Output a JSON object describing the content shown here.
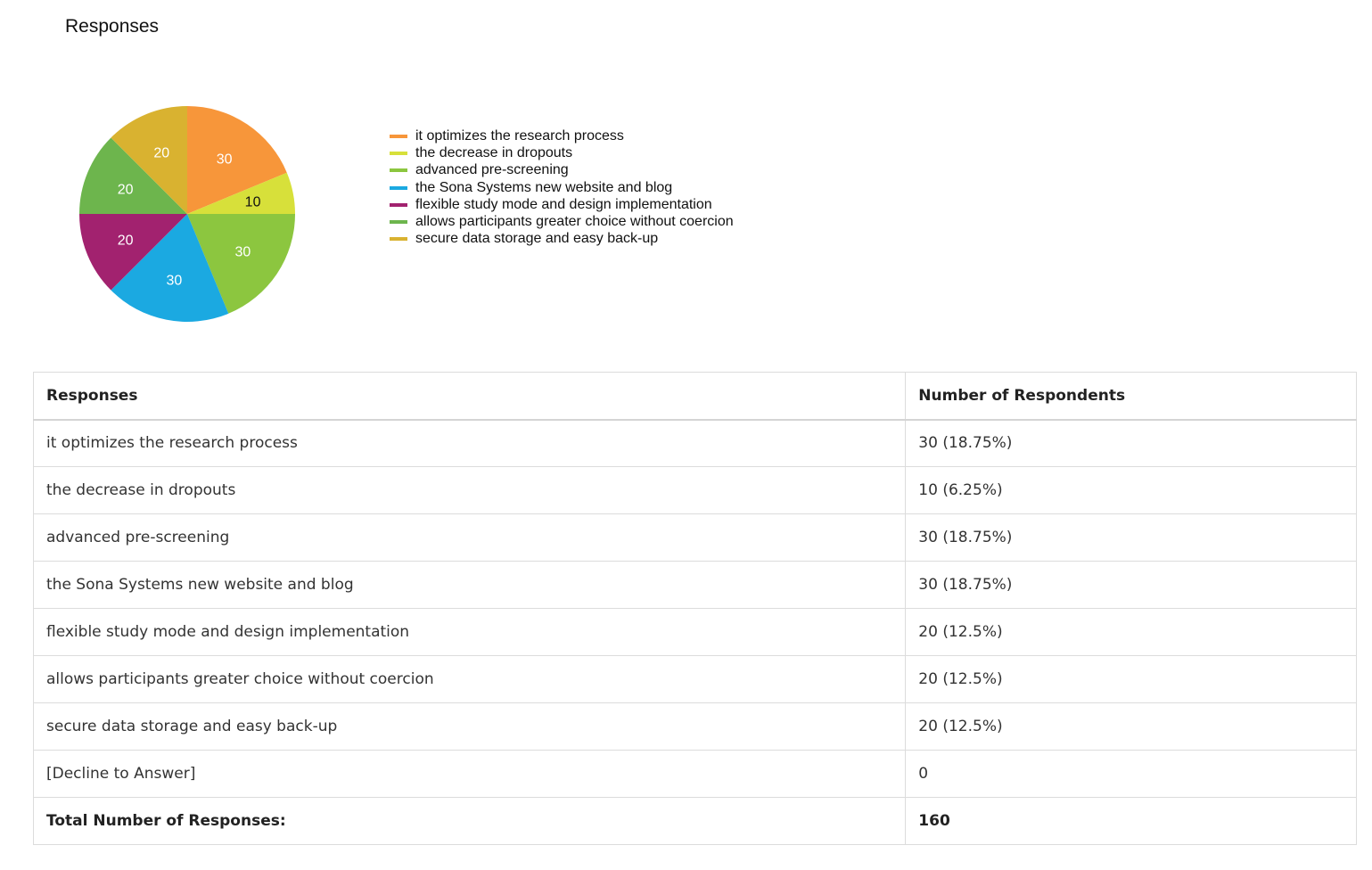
{
  "title": "Responses",
  "chart_data": {
    "type": "pie",
    "categories": [
      "it optimizes the research process",
      "the decrease in dropouts",
      "advanced pre-screening",
      "the Sona Systems new website and blog",
      "flexible study mode and design implementation",
      "allows participants greater choice without coercion",
      "secure data storage and easy back-up"
    ],
    "values": [
      30,
      10,
      30,
      30,
      20,
      20,
      20
    ],
    "colors": [
      "#f7963a",
      "#d7e03a",
      "#8cc63f",
      "#1ba9e1",
      "#a2226f",
      "#6db54d",
      "#d9b230"
    ],
    "label_colors": [
      "#ffffff",
      "#111111",
      "#ffffff",
      "#ffffff",
      "#ffffff",
      "#ffffff",
      "#ffffff"
    ],
    "legend": "right"
  },
  "table": {
    "headers": [
      "Responses",
      "Number of Respondents"
    ],
    "rows": [
      [
        "it optimizes the research process",
        "30 (18.75%)"
      ],
      [
        "the decrease in dropouts",
        "10 (6.25%)"
      ],
      [
        "advanced pre-screening",
        "30 (18.75%)"
      ],
      [
        "the Sona Systems new website and blog",
        "30 (18.75%)"
      ],
      [
        "flexible study mode and design implementation",
        "20 (12.5%)"
      ],
      [
        "allows participants greater choice without coercion",
        "20 (12.5%)"
      ],
      [
        "secure data storage and easy back-up",
        "20 (12.5%)"
      ],
      [
        "[Decline to Answer]",
        "0"
      ]
    ],
    "total": [
      "Total Number of Responses:",
      "160"
    ]
  }
}
